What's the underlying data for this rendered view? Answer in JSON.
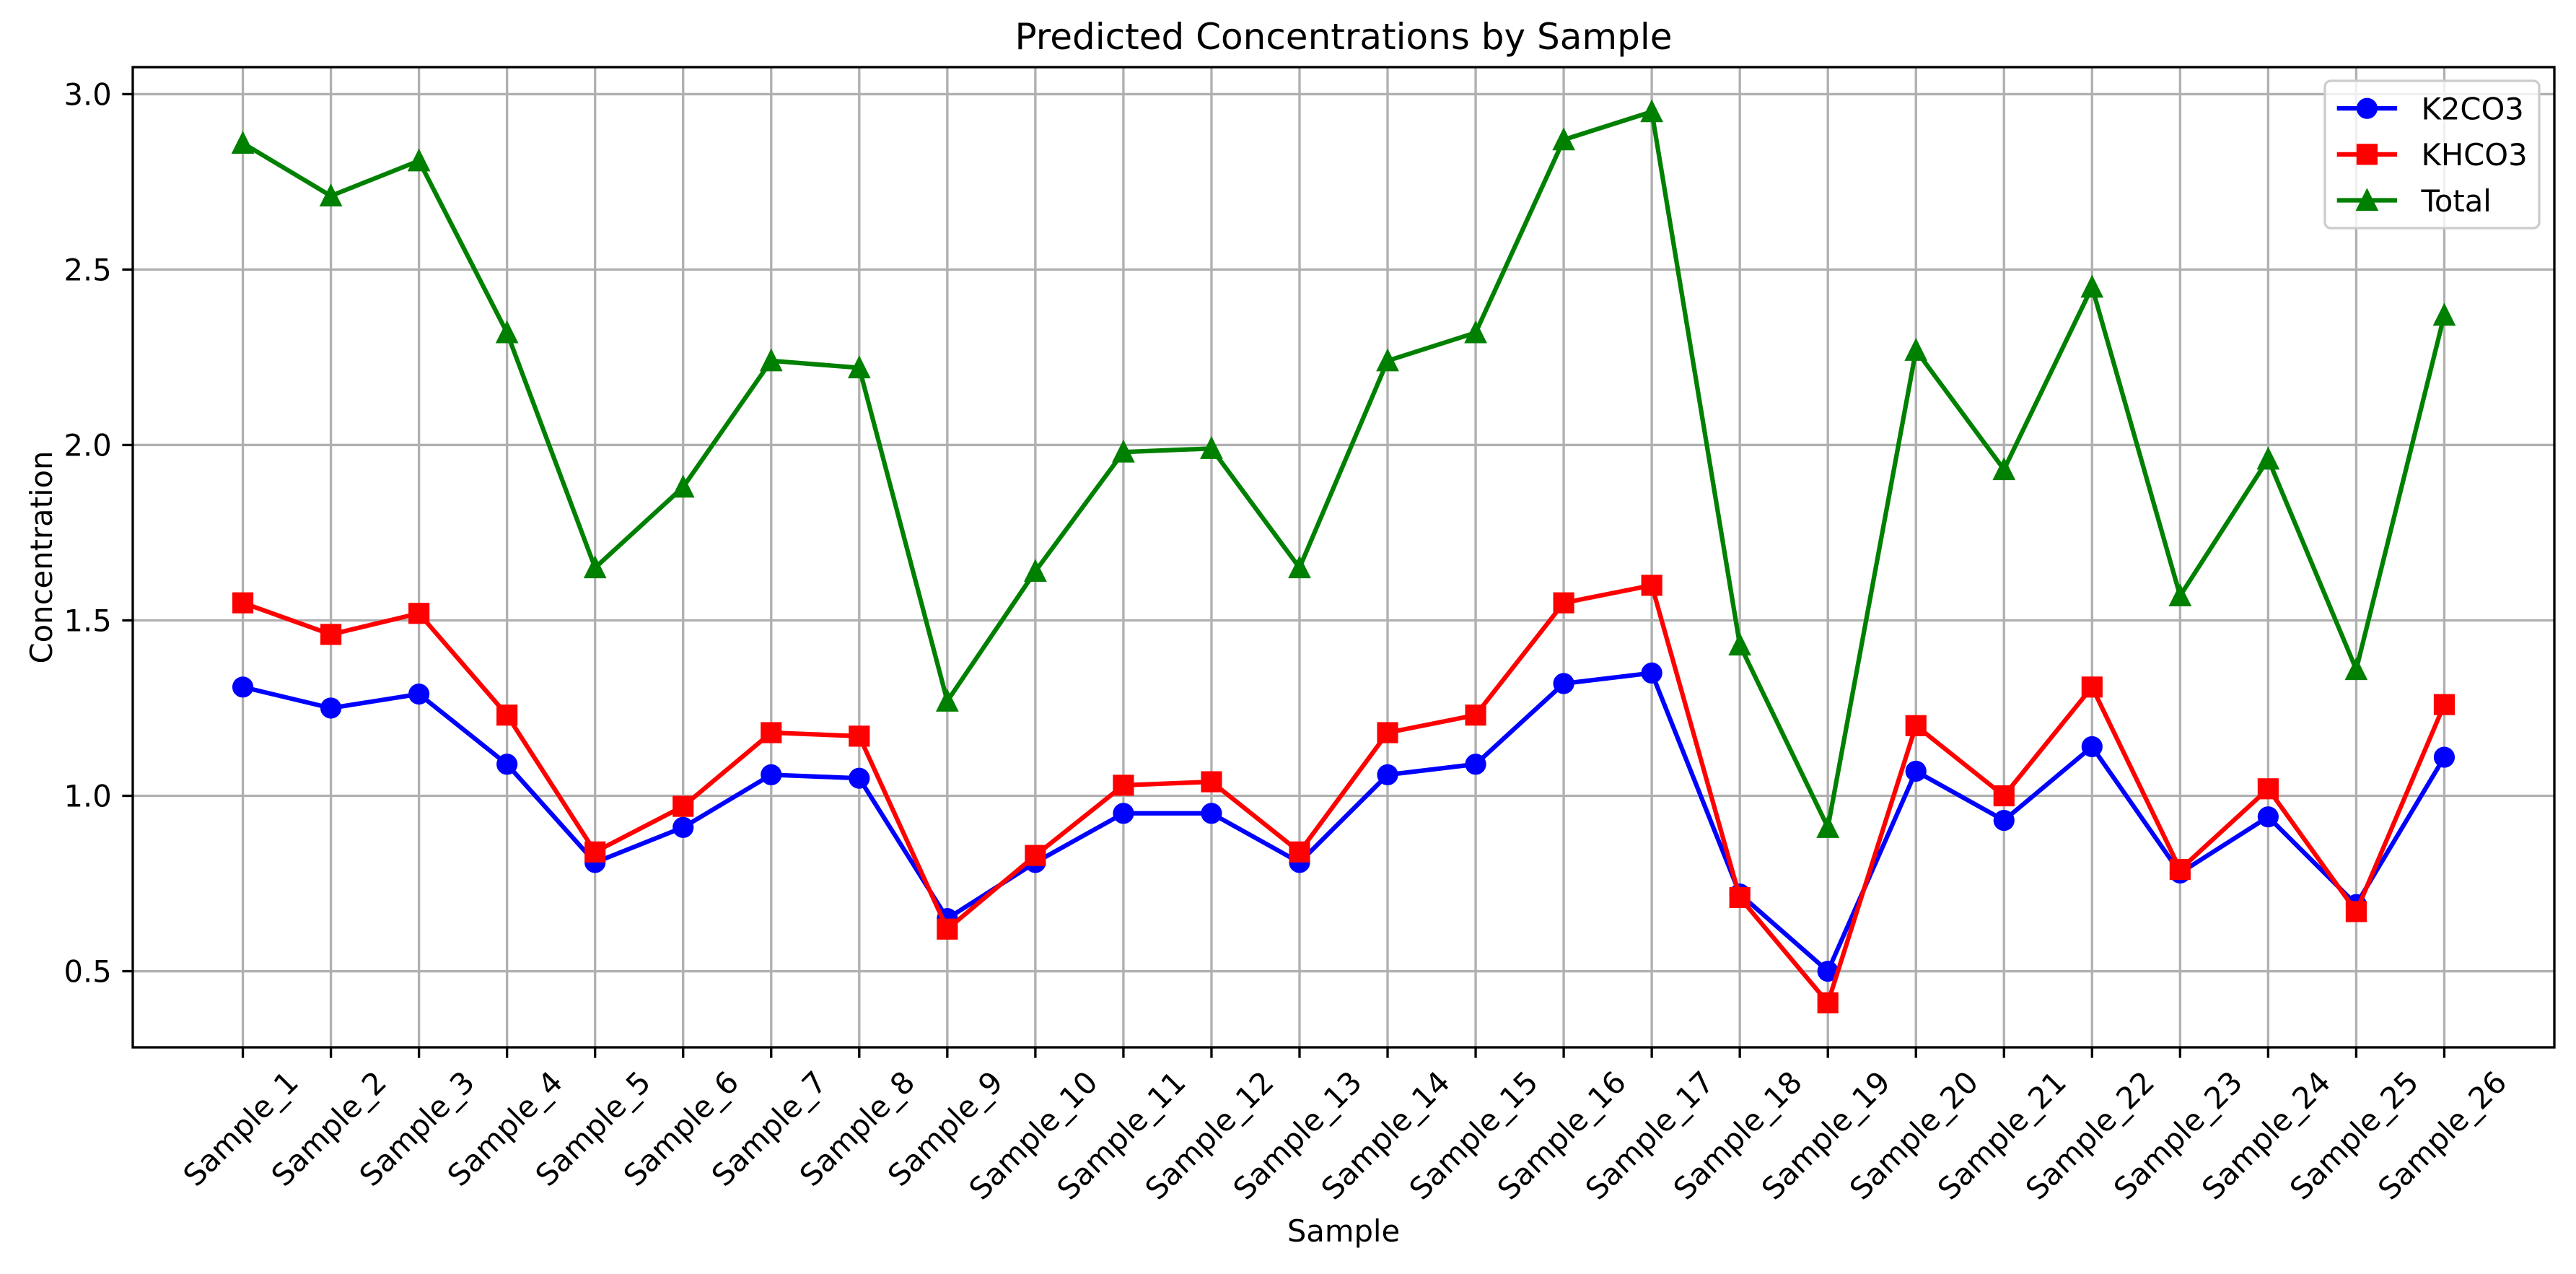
{
  "chart_data": {
    "type": "line",
    "title": "Predicted Concentrations by Sample",
    "xlabel": "Sample",
    "ylabel": "Concentration",
    "categories": [
      "Sample_1",
      "Sample_2",
      "Sample_3",
      "Sample_4",
      "Sample_5",
      "Sample_6",
      "Sample_7",
      "Sample_8",
      "Sample_9",
      "Sample_10",
      "Sample_11",
      "Sample_12",
      "Sample_13",
      "Sample_14",
      "Sample_15",
      "Sample_16",
      "Sample_17",
      "Sample_18",
      "Sample_19",
      "Sample_20",
      "Sample_21",
      "Sample_22",
      "Sample_23",
      "Sample_24",
      "Sample_25",
      "Sample_26"
    ],
    "yticks": [
      "0.5",
      "1.0",
      "1.5",
      "2.0",
      "2.5",
      "3.0"
    ],
    "ylim": [
      0.283,
      3.077
    ],
    "grid": true,
    "legend_position": "top-right",
    "series": [
      {
        "name": "K2CO3",
        "color": "#0000ff",
        "marker": "circle",
        "values": [
          1.31,
          1.25,
          1.29,
          1.09,
          0.81,
          0.91,
          1.06,
          1.05,
          0.65,
          0.81,
          0.95,
          0.95,
          0.81,
          1.06,
          1.09,
          1.32,
          1.35,
          0.72,
          0.5,
          1.07,
          0.93,
          1.14,
          0.78,
          0.94,
          0.69,
          1.11
        ]
      },
      {
        "name": "KHCO3",
        "color": "#ff0000",
        "marker": "square",
        "values": [
          1.55,
          1.46,
          1.52,
          1.23,
          0.84,
          0.97,
          1.18,
          1.17,
          0.62,
          0.83,
          1.03,
          1.04,
          0.84,
          1.18,
          1.23,
          1.55,
          1.6,
          0.71,
          0.41,
          1.2,
          1.0,
          1.31,
          0.79,
          1.02,
          0.67,
          1.26
        ]
      },
      {
        "name": "Total",
        "color": "#008000",
        "marker": "triangle-up",
        "values": [
          2.86,
          2.71,
          2.81,
          2.32,
          1.65,
          1.88,
          2.24,
          2.22,
          1.27,
          1.64,
          1.98,
          1.99,
          1.65,
          2.24,
          2.32,
          2.87,
          2.95,
          1.43,
          0.91,
          2.27,
          1.93,
          2.45,
          1.57,
          1.96,
          1.36,
          2.37
        ]
      }
    ]
  }
}
